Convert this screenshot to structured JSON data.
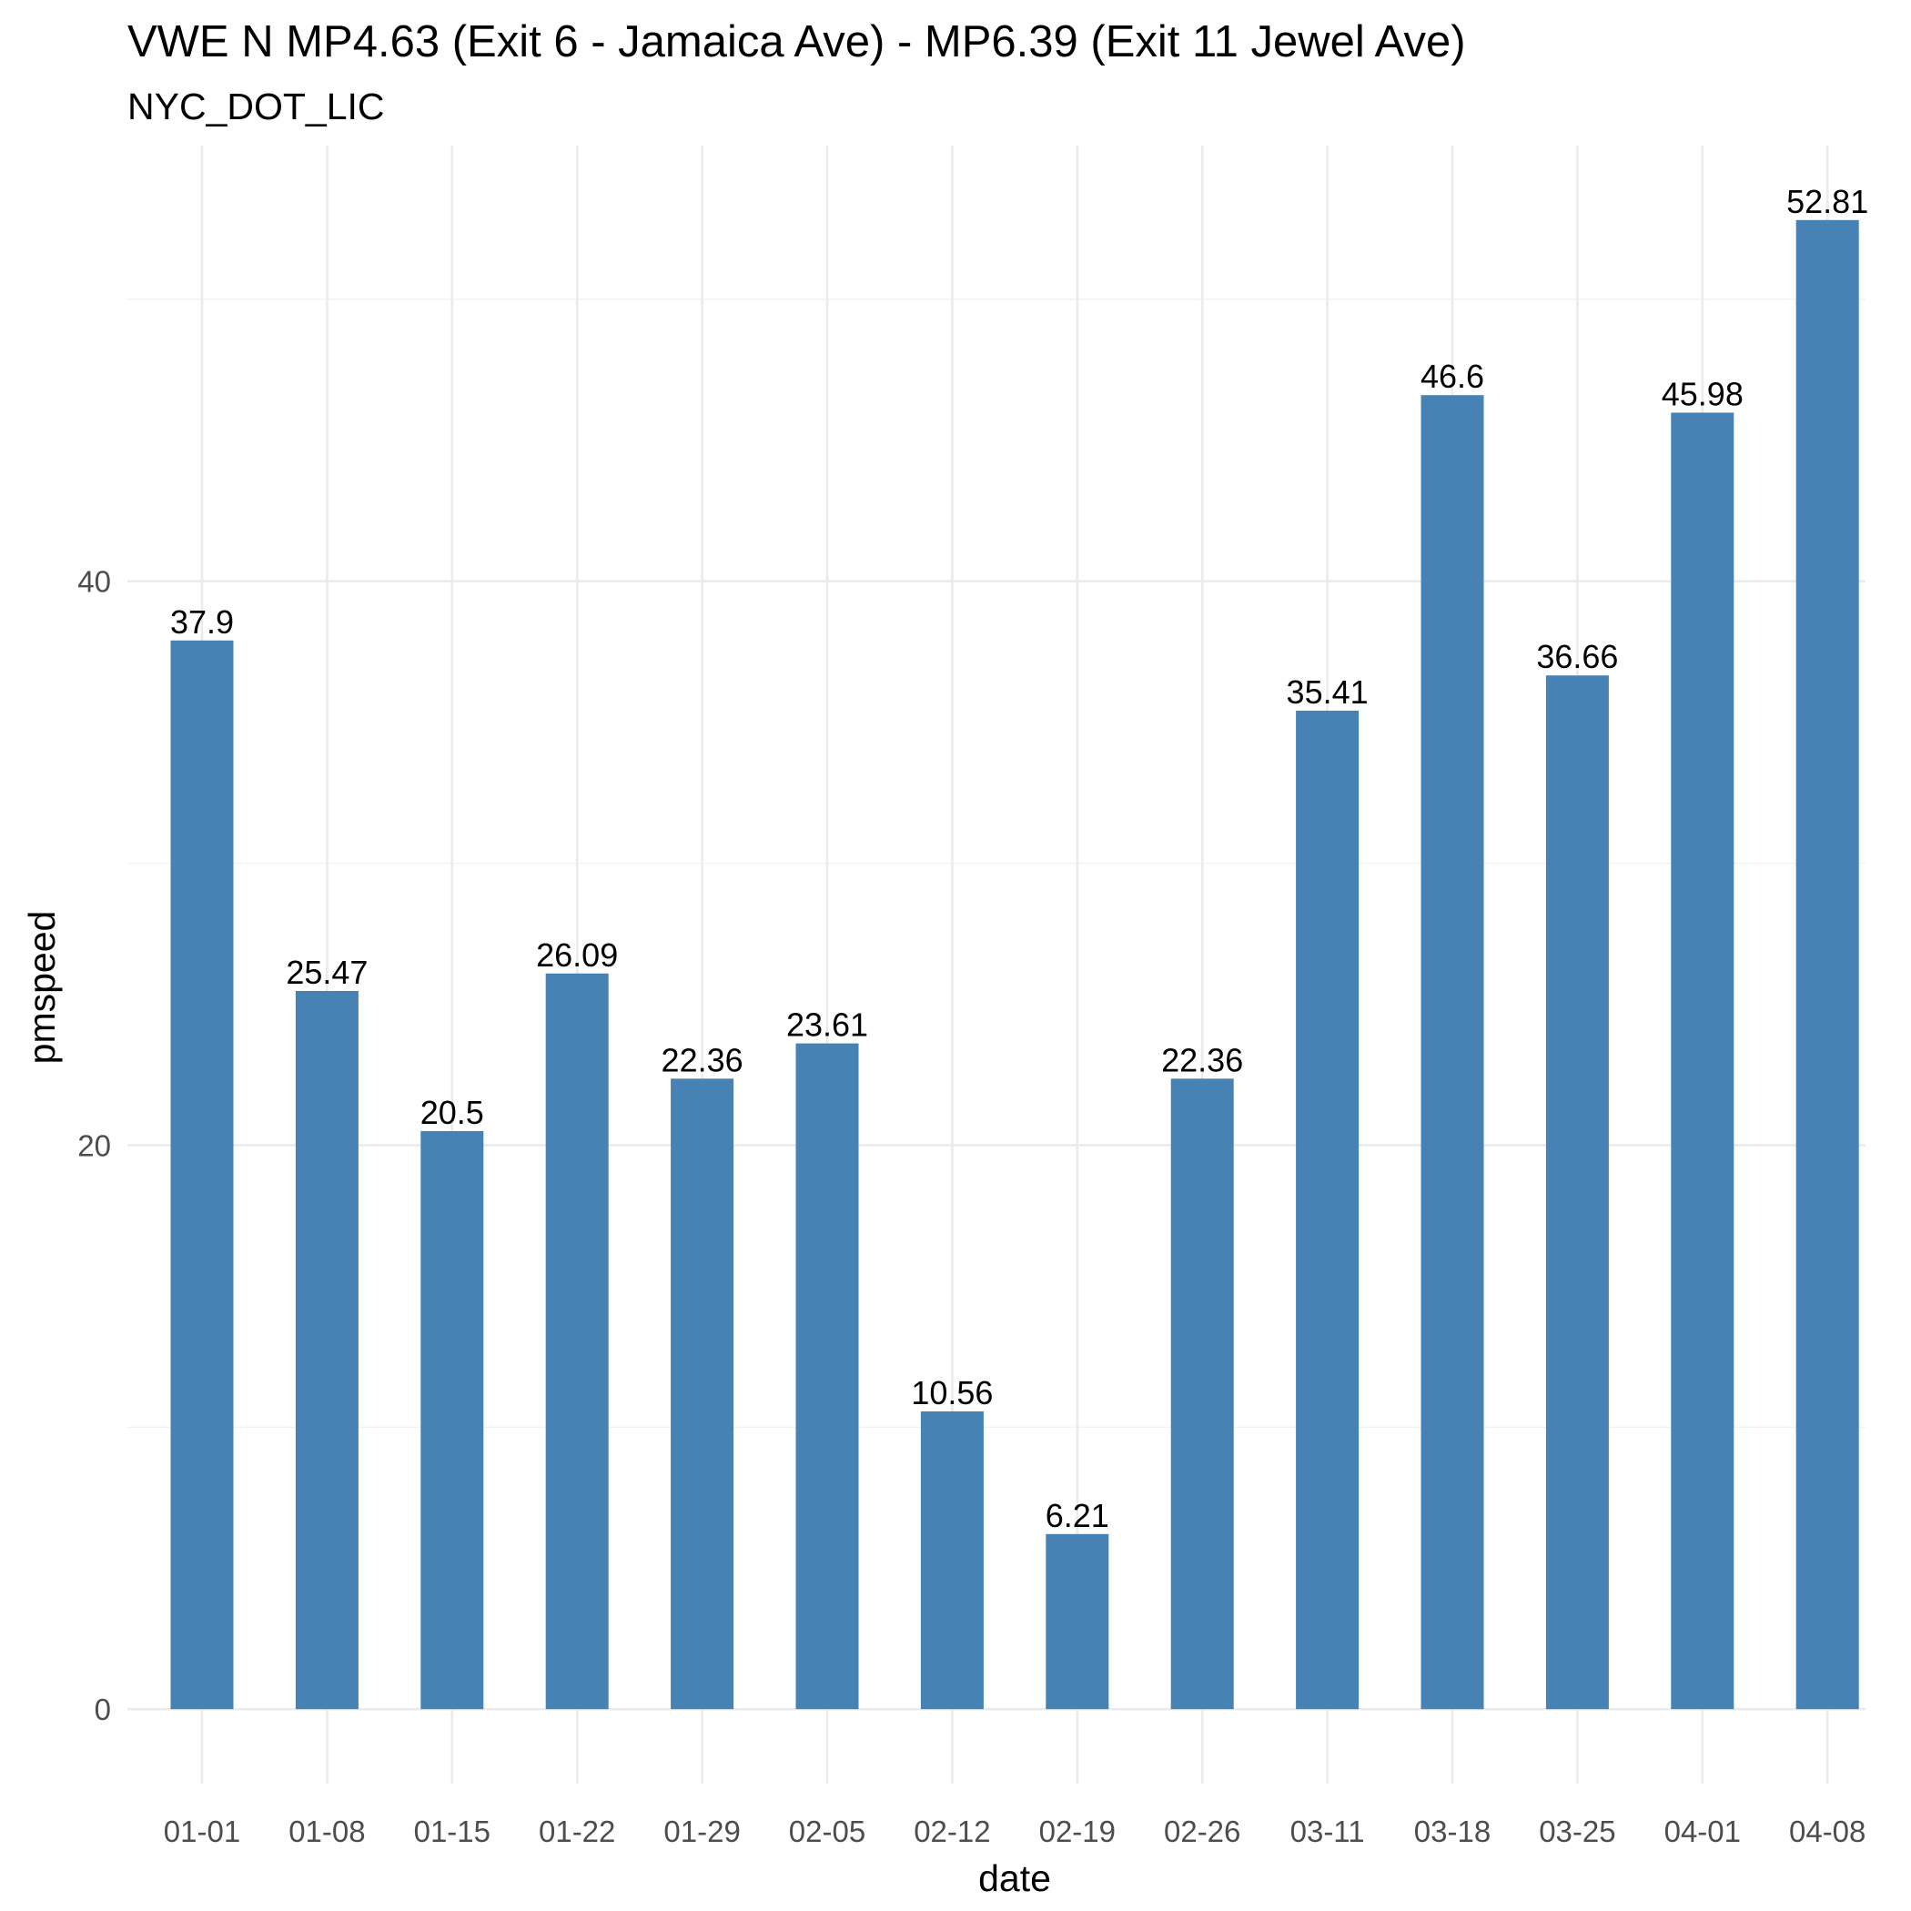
{
  "chart_data": {
    "type": "bar",
    "title": "VWE N MP4.63 (Exit 6 - Jamaica Ave) - MP6.39 (Exit 11 Jewel Ave)",
    "subtitle": "NYC_DOT_LIC",
    "xlabel": "date",
    "ylabel": "pmspeed",
    "categories": [
      "01-01",
      "01-08",
      "01-15",
      "01-22",
      "01-29",
      "02-05",
      "02-12",
      "02-19",
      "02-26",
      "03-11",
      "03-18",
      "03-25",
      "04-01",
      "04-08"
    ],
    "values": [
      37.9,
      25.47,
      20.5,
      26.09,
      22.36,
      23.61,
      10.56,
      6.21,
      22.36,
      35.41,
      46.6,
      36.66,
      45.98,
      52.81
    ],
    "data_labels": [
      "37.9",
      "25.47",
      "20.5",
      "26.09",
      "22.36",
      "23.61",
      "10.56",
      "6.21",
      "22.36",
      "35.41",
      "46.6",
      "36.66",
      "45.98",
      "52.81"
    ],
    "yticks": [
      0,
      20,
      40
    ],
    "ytick_labels": [
      "0",
      "20",
      "40"
    ],
    "ylim": [
      -2.64,
      55.45
    ],
    "grid": true,
    "bar_color": "#4682b4",
    "legend": "none"
  }
}
